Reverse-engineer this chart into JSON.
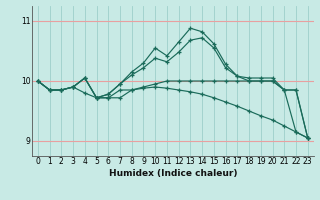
{
  "xlabel": "Humidex (Indice chaleur)",
  "xlim": [
    -0.5,
    23.5
  ],
  "ylim": [
    8.75,
    11.25
  ],
  "yticks": [
    9,
    10,
    11
  ],
  "xticks": [
    0,
    1,
    2,
    3,
    4,
    5,
    6,
    7,
    8,
    9,
    10,
    11,
    12,
    13,
    14,
    15,
    16,
    17,
    18,
    19,
    20,
    21,
    22,
    23
  ],
  "background_color": "#c8eae5",
  "grid_color_h": "#e8a0a0",
  "grid_color_v": "#9ecfca",
  "line_color": "#1a6b5a",
  "series": [
    [
      10.0,
      9.85,
      9.85,
      9.9,
      10.05,
      9.72,
      9.72,
      9.72,
      9.85,
      9.9,
      9.95,
      10.0,
      10.0,
      10.0,
      10.0,
      10.0,
      10.0,
      10.0,
      10.0,
      10.0,
      10.0,
      9.85,
      9.85,
      9.05
    ],
    [
      10.0,
      9.85,
      9.85,
      9.9,
      10.05,
      9.72,
      9.78,
      9.95,
      10.15,
      10.3,
      10.55,
      10.42,
      10.65,
      10.88,
      10.82,
      10.62,
      10.28,
      10.08,
      10.0,
      10.0,
      10.0,
      9.85,
      9.85,
      9.05
    ],
    [
      10.0,
      9.85,
      9.85,
      9.9,
      10.05,
      9.72,
      9.78,
      9.95,
      10.1,
      10.22,
      10.38,
      10.32,
      10.48,
      10.68,
      10.72,
      10.55,
      10.22,
      10.08,
      10.05,
      10.05,
      10.05,
      9.85,
      9.15,
      9.05
    ],
    [
      10.0,
      9.85,
      9.85,
      9.9,
      9.8,
      9.72,
      9.72,
      9.85,
      9.85,
      9.88,
      9.9,
      9.88,
      9.85,
      9.82,
      9.78,
      9.72,
      9.65,
      9.58,
      9.5,
      9.42,
      9.35,
      9.25,
      9.15,
      9.05
    ]
  ]
}
